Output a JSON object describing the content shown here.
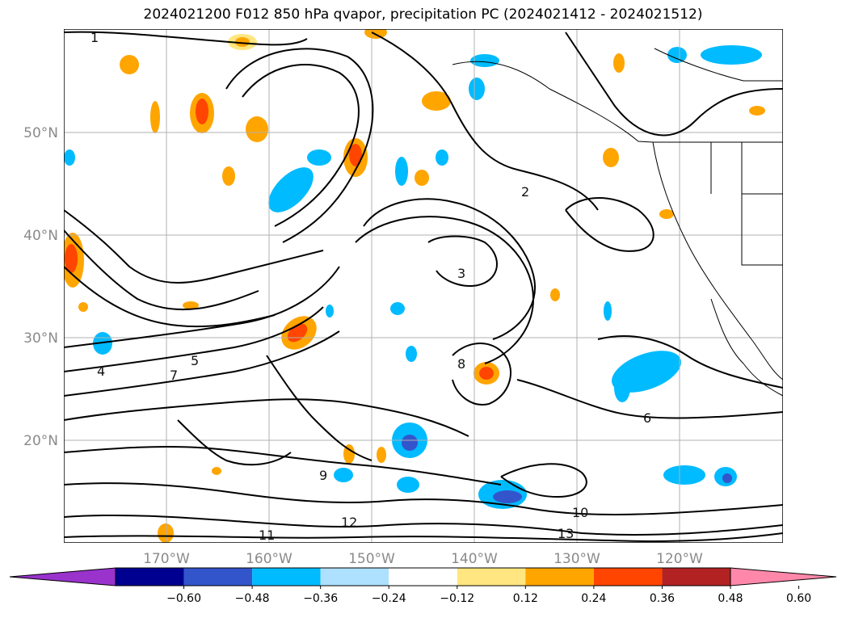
{
  "title": "2024021200 F012 850 hPa qvapor, precipitation PC (2024021412 - 2024021512)",
  "lat_labels": [
    "50°N",
    "40°N",
    "30°N",
    "20°N"
  ],
  "lon_labels": [
    "170°W",
    "160°W",
    "150°W",
    "140°W",
    "130°W",
    "120°W"
  ],
  "colorbar": {
    "ticks": [
      "−0.60",
      "−0.48",
      "−0.36",
      "−0.24",
      "−0.12",
      "0.12",
      "0.24",
      "0.36",
      "0.48",
      "0.60"
    ],
    "colors": [
      "#9933cc",
      "#000090",
      "#3355cc",
      "#00bbff",
      "#aee0ff",
      "#ffffff",
      "#ffe680",
      "#ffa500",
      "#ff4500",
      "#b22222",
      "#ff88aa"
    ]
  },
  "contour_labels": [
    "1",
    "2",
    "3",
    "4",
    "5",
    "6",
    "7",
    "8",
    "9",
    "10",
    "11",
    "12",
    "13"
  ]
}
